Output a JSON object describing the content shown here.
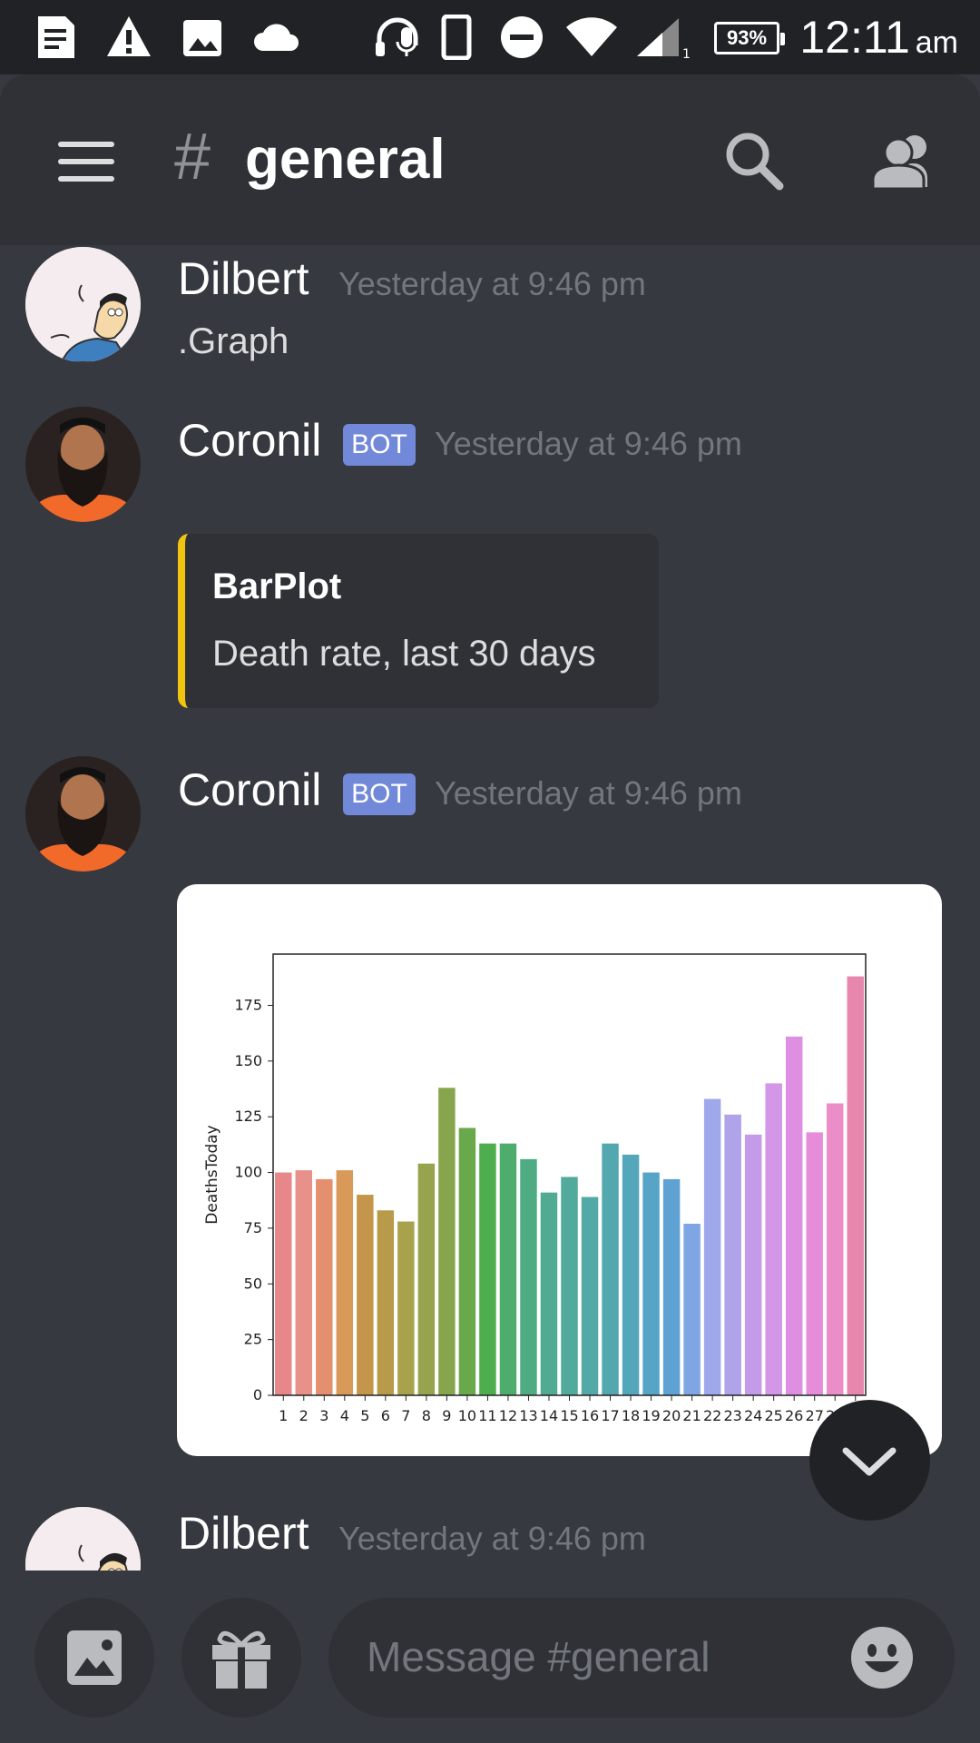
{
  "status_bar": {
    "battery": "93%",
    "time": "12:11",
    "ampm": "am",
    "icons": [
      "notes-icon",
      "warning-icon",
      "image-icon",
      "cloud-icon",
      "headset-icon",
      "phone-icon",
      "dnd-icon",
      "wifi-icon",
      "signal-icon"
    ]
  },
  "header": {
    "hash": "#",
    "channel": "general"
  },
  "messages": [
    {
      "author": "Dilbert",
      "timestamp": "Yesterday at 9:46 pm",
      "text": ".Graph"
    },
    {
      "author": "Coronil",
      "badge": "BOT",
      "timestamp": "Yesterday at 9:46 pm",
      "embed": {
        "title": "BarPlot",
        "description": "Death rate, last 30 days"
      }
    },
    {
      "author": "Coronil",
      "badge": "BOT",
      "timestamp": "Yesterday at 9:46 pm"
    },
    {
      "author": "Dilbert",
      "timestamp": "Yesterday at 9:46 pm"
    }
  ],
  "composer": {
    "placeholder": "Message #general"
  },
  "chart_data": {
    "type": "bar",
    "categories": [
      "1",
      "2",
      "3",
      "4",
      "5",
      "6",
      "7",
      "8",
      "9",
      "10",
      "11",
      "12",
      "13",
      "14",
      "15",
      "16",
      "17",
      "18",
      "19",
      "20",
      "21",
      "22",
      "23",
      "24",
      "25",
      "26",
      "27",
      "28",
      "29"
    ],
    "values": [
      100,
      101,
      97,
      101,
      90,
      83,
      78,
      104,
      138,
      120,
      113,
      113,
      106,
      91,
      98,
      89,
      113,
      108,
      100,
      97,
      77,
      133,
      126,
      117,
      140,
      161,
      118,
      131,
      188
    ],
    "ylabel": "DeathsToday",
    "ylim": [
      0,
      198
    ],
    "yticks": [
      0,
      25,
      50,
      75,
      100,
      125,
      150,
      175
    ],
    "colors": [
      "#e8878a",
      "#e8918a",
      "#e48f6e",
      "#d99a59",
      "#c4954a",
      "#b89a4b",
      "#a8a24d",
      "#97a44d",
      "#86a54c",
      "#6aa84c",
      "#4ead4e",
      "#4eac6c",
      "#4fac82",
      "#50ab92",
      "#51aa9c",
      "#52a9a6",
      "#53a8b0",
      "#54a7bb",
      "#56a5c6",
      "#5ea2d4",
      "#7fa5e3",
      "#9ea8ea",
      "#b0a3ea",
      "#c49be8",
      "#d496e6",
      "#df8fe2",
      "#e78cd8",
      "#eb8dc6",
      "#e887ae"
    ]
  }
}
